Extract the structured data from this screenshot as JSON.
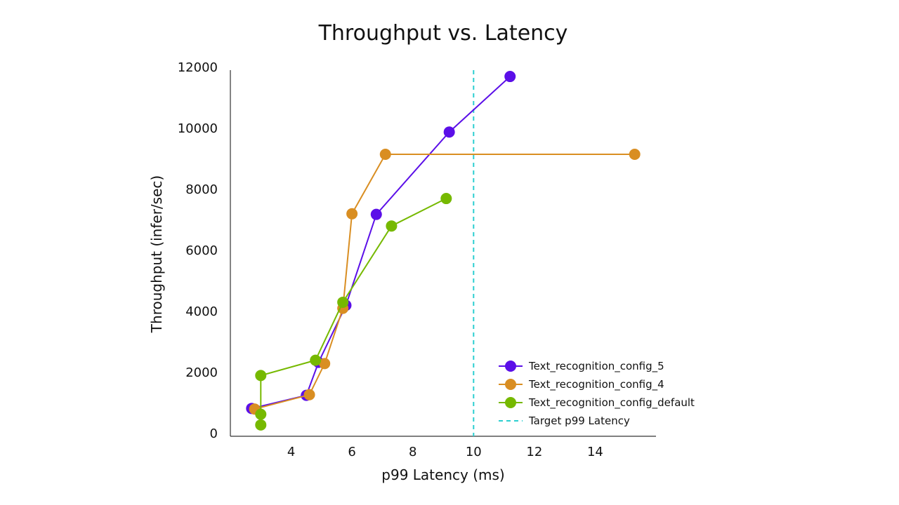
{
  "chart_data": {
    "type": "line",
    "title": "Throughput vs. Latency",
    "xlabel": "p99 Latency (ms)",
    "ylabel": "Throughput (infer/sec)",
    "xlim": [
      2.0,
      16.0
    ],
    "ylim": [
      0,
      12000
    ],
    "xticks": [
      4,
      6,
      8,
      10,
      12,
      14
    ],
    "yticks": [
      0,
      2000,
      4000,
      6000,
      8000,
      10000,
      12000
    ],
    "grid": false,
    "legend_position": "lower-right",
    "series": [
      {
        "name": "Text_recognition_config_5",
        "color": "#5B0FE8",
        "points": [
          {
            "x": 2.7,
            "y": 820
          },
          {
            "x": 4.5,
            "y": 1250
          },
          {
            "x": 4.9,
            "y": 2330
          },
          {
            "x": 5.8,
            "y": 4200
          },
          {
            "x": 6.8,
            "y": 7180
          },
          {
            "x": 9.2,
            "y": 9880
          },
          {
            "x": 11.2,
            "y": 11700
          }
        ]
      },
      {
        "name": "Text_recognition_config_4",
        "color": "#D98E22",
        "points": [
          {
            "x": 2.8,
            "y": 800
          },
          {
            "x": 4.6,
            "y": 1270
          },
          {
            "x": 5.1,
            "y": 2290
          },
          {
            "x": 5.7,
            "y": 4100
          },
          {
            "x": 6.0,
            "y": 7200
          },
          {
            "x": 7.1,
            "y": 9150
          },
          {
            "x": 15.3,
            "y": 9150
          }
        ]
      },
      {
        "name": "Text_recognition_config_default",
        "color": "#76B900",
        "points": [
          {
            "x": 3.0,
            "y": 280
          },
          {
            "x": 3.0,
            "y": 630
          },
          {
            "x": 3.0,
            "y": 1900
          },
          {
            "x": 4.8,
            "y": 2400
          },
          {
            "x": 5.7,
            "y": 4300
          },
          {
            "x": 7.3,
            "y": 6800
          },
          {
            "x": 9.1,
            "y": 7700
          }
        ]
      }
    ],
    "reference_line": {
      "name": "Target p99 Latency",
      "x": 10,
      "color": "#2CCFD0",
      "style": "dashed"
    }
  }
}
